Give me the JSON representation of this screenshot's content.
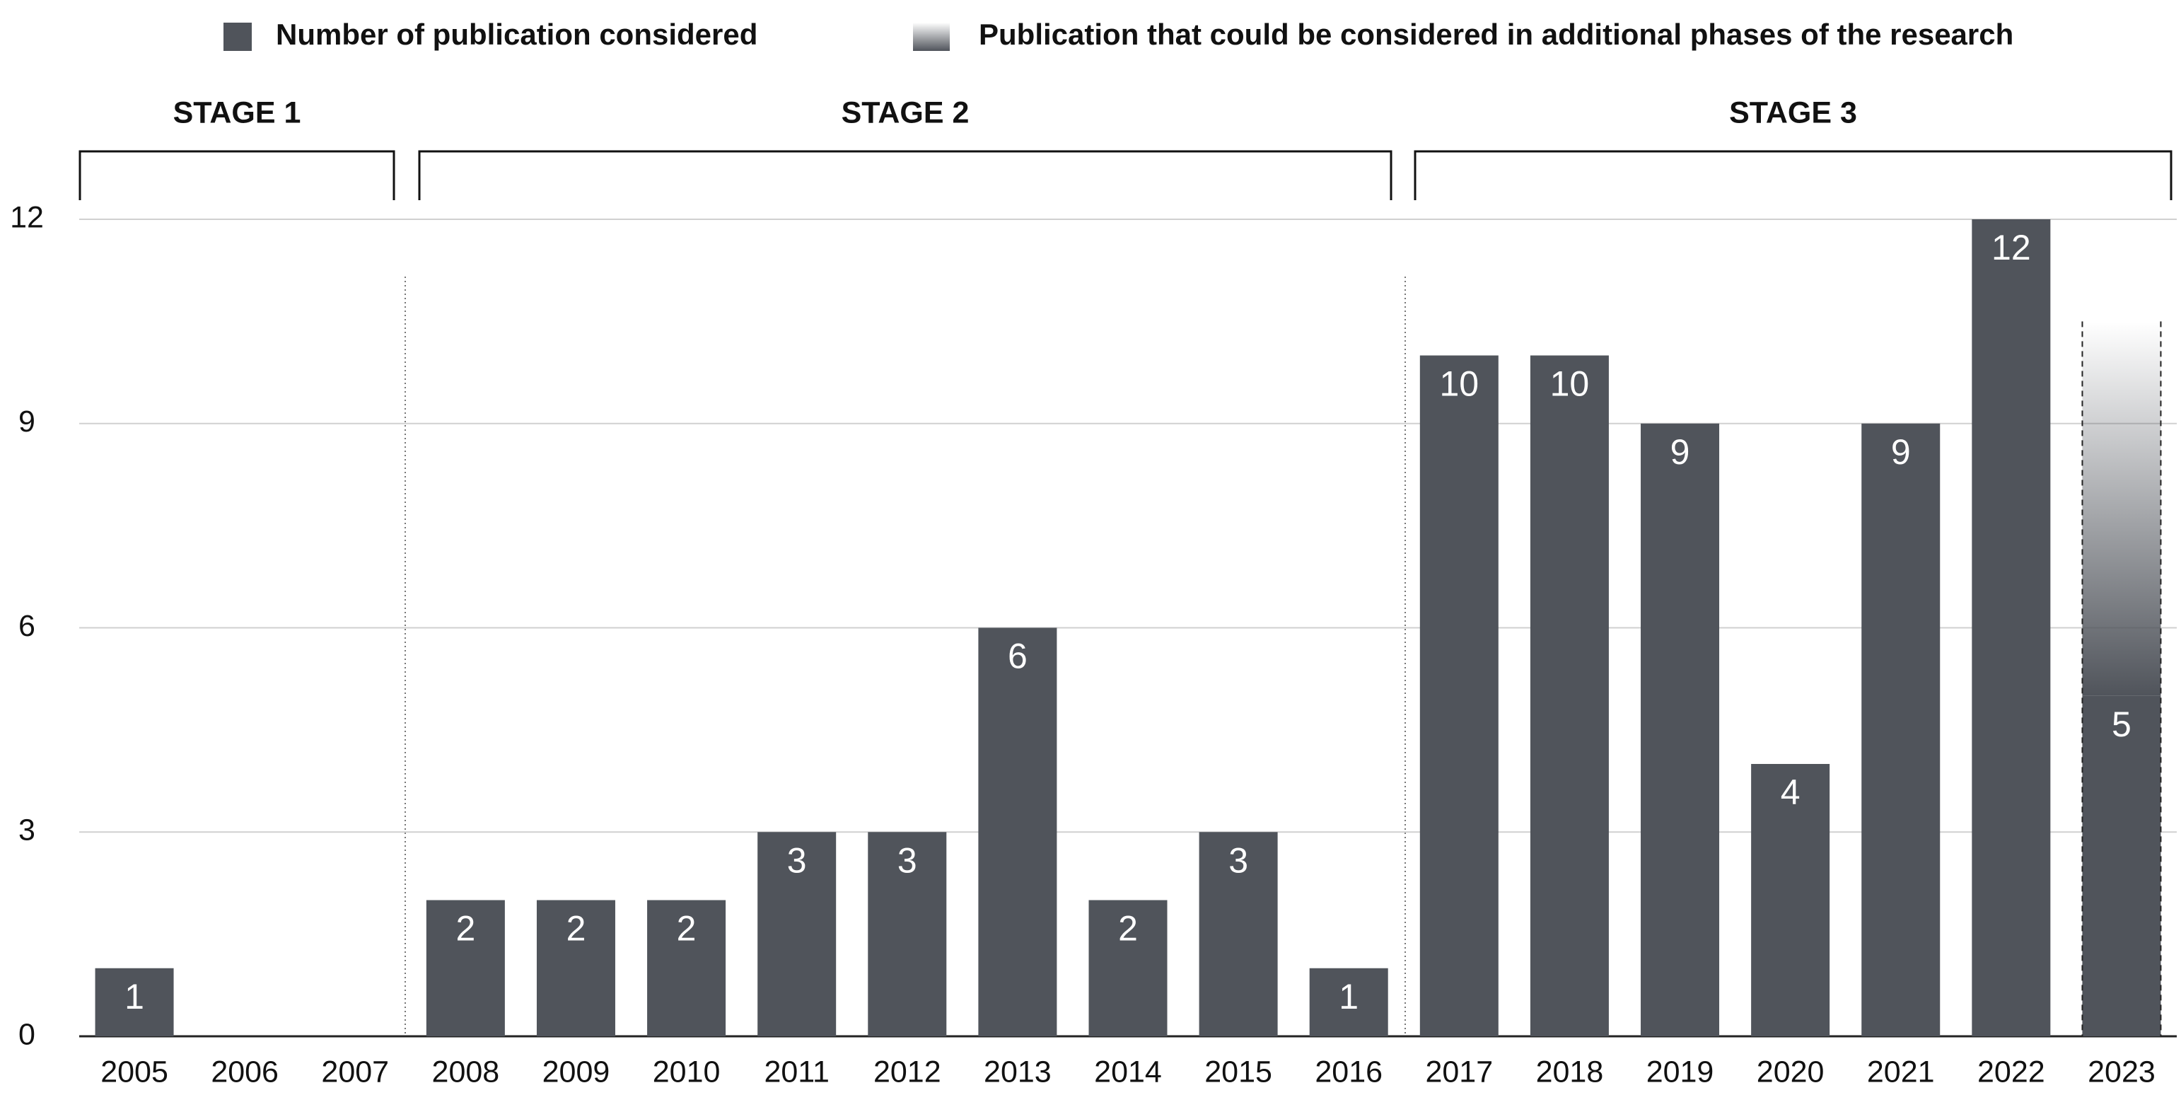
{
  "chart_data": {
    "type": "bar",
    "stacked": true,
    "categories": [
      "2005",
      "2006",
      "2007",
      "2008",
      "2009",
      "2010",
      "2011",
      "2012",
      "2013",
      "2014",
      "2015",
      "2016",
      "2017",
      "2018",
      "2019",
      "2020",
      "2021",
      "2022",
      "2023"
    ],
    "series": [
      {
        "name": "Number of publication considered",
        "color": "#50545b",
        "values": [
          1,
          0,
          0,
          2,
          2,
          2,
          3,
          3,
          6,
          2,
          3,
          1,
          10,
          10,
          9,
          4,
          9,
          12,
          5
        ]
      },
      {
        "name": "Publication that could be considered in additional phases of the research",
        "color": "#50545b",
        "style": "gradient-dashed",
        "values": [
          null,
          null,
          null,
          null,
          null,
          null,
          null,
          null,
          null,
          null,
          null,
          null,
          null,
          null,
          null,
          null,
          null,
          null,
          5.5
        ]
      }
    ],
    "stages": [
      "STAGE 1",
      "STAGE 2",
      "STAGE 3"
    ],
    "ylim": [
      0,
      12
    ],
    "yticks": [
      0,
      3,
      6,
      9,
      12
    ],
    "grid": true
  }
}
